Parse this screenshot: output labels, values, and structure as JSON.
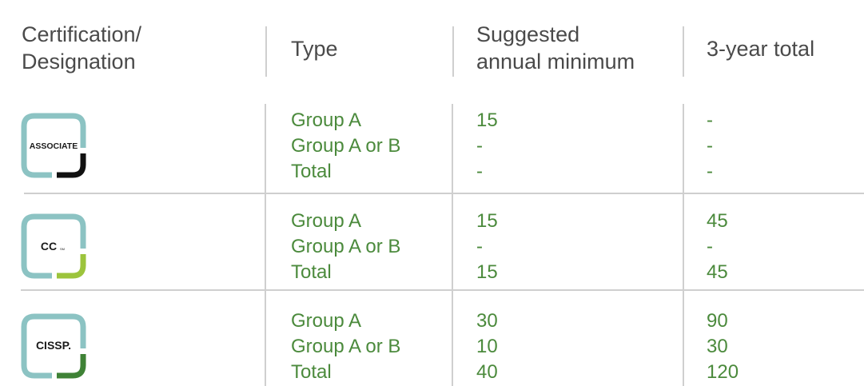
{
  "header": {
    "col1": [
      "Certification/",
      "Designation"
    ],
    "col2": "Type",
    "col3": [
      "Suggested",
      "annual minimum"
    ],
    "col4": "3-year total"
  },
  "colors": {
    "teal": "#8cc3c3",
    "text_green": "#4b8a3c",
    "header_text": "#4a4a4a"
  },
  "rows": [
    {
      "badge": "ASSOCIATE",
      "accent": "#111111",
      "types": [
        "Group A",
        "Group A or B",
        "Total"
      ],
      "annual": [
        "15",
        "-",
        "-"
      ],
      "total": [
        "-",
        "-",
        "-"
      ]
    },
    {
      "badge": "CC",
      "accent": "#9cc43c",
      "types": [
        "Group A",
        "Group A or B",
        "Total"
      ],
      "annual": [
        "15",
        "-",
        "15"
      ],
      "total": [
        "45",
        "-",
        "45"
      ]
    },
    {
      "badge": "CISSP.",
      "accent": "#3f8236",
      "types": [
        "Group A",
        "Group A or B",
        "Total"
      ],
      "annual": [
        "30",
        "10",
        "40"
      ],
      "total": [
        "90",
        "30",
        "120"
      ]
    }
  ]
}
